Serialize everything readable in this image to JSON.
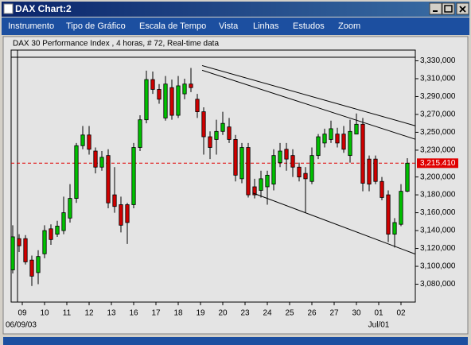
{
  "window": {
    "title": "DAX Chart:2",
    "menu": [
      "Instrumento",
      "Tipo de Gráfico",
      "Escala de Tempo",
      "Vista",
      "Linhas",
      "Estudos",
      "Zoom"
    ]
  },
  "chart_data": {
    "type": "candlestick",
    "title": "DAX 30 Performance Index , 4 horas, # 72, Real-time data",
    "x": [
      0,
      1,
      2,
      3,
      4,
      5,
      6,
      7,
      8,
      9,
      10,
      11,
      12,
      13,
      14,
      15,
      16,
      17,
      18,
      19,
      20,
      21,
      22,
      23,
      24,
      25,
      26,
      27,
      28,
      29,
      30,
      31,
      32,
      33,
      34,
      35,
      36,
      37,
      38,
      39,
      40,
      41,
      42,
      43,
      44,
      45,
      46,
      47,
      48,
      49,
      50,
      51,
      52,
      53,
      54,
      55,
      56,
      57,
      58,
      59,
      60,
      61,
      62
    ],
    "open": [
      3096,
      3131,
      3131,
      3107,
      3093,
      3114,
      3142,
      3136,
      3140,
      3154,
      3176,
      3235,
      3247,
      3229,
      3211,
      3224,
      3180,
      3169,
      3169,
      3169,
      3233,
      3264,
      3309,
      3298,
      3266,
      3300,
      3269,
      3293,
      3304,
      3287,
      3273,
      3245,
      3242,
      3251,
      3256,
      3242,
      3198,
      3233,
      3189,
      3185,
      3189,
      3192,
      3216,
      3231,
      3224,
      3211,
      3204,
      3195,
      3224,
      3238,
      3242,
      3248,
      3248,
      3224,
      3248,
      3259,
      3220,
      3220,
      3195,
      3180,
      3136,
      3147,
      3184
    ],
    "high": [
      3146,
      3136,
      3135,
      3112,
      3118,
      3146,
      3147,
      3151,
      3178,
      3192,
      3238,
      3257,
      3257,
      3233,
      3229,
      3231,
      3211,
      3178,
      3171,
      3238,
      3269,
      3319,
      3318,
      3304,
      3313,
      3309,
      3313,
      3310,
      3322,
      3293,
      3278,
      3251,
      3264,
      3273,
      3266,
      3247,
      3238,
      3238,
      3198,
      3207,
      3207,
      3231,
      3238,
      3238,
      3231,
      3216,
      3211,
      3233,
      3248,
      3254,
      3263,
      3255,
      3257,
      3264,
      3271,
      3266,
      3224,
      3224,
      3200,
      3185,
      3154,
      3192,
      3221
    ],
    "low": [
      3092,
      3116,
      3102,
      3078,
      3080,
      3109,
      3124,
      3133,
      3136,
      3149,
      3171,
      3231,
      3225,
      3204,
      3207,
      3165,
      3160,
      3138,
      3125,
      3165,
      3229,
      3260,
      3293,
      3282,
      3263,
      3264,
      3266,
      3287,
      3295,
      3266,
      3225,
      3220,
      3225,
      3247,
      3238,
      3195,
      3193,
      3177,
      3176,
      3177,
      3169,
      3185,
      3211,
      3207,
      3200,
      3195,
      3160,
      3192,
      3220,
      3233,
      3238,
      3233,
      3227,
      3216,
      3248,
      3184,
      3184,
      3192,
      3174,
      3127,
      3121,
      3145,
      3183
    ],
    "close": [
      3133,
      3123,
      3105,
      3089,
      3111,
      3140,
      3130,
      3145,
      3160,
      3176,
      3235,
      3247,
      3231,
      3211,
      3222,
      3171,
      3167,
      3146,
      3149,
      3233,
      3264,
      3309,
      3298,
      3287,
      3304,
      3269,
      3302,
      3304,
      3300,
      3273,
      3245,
      3233,
      3251,
      3260,
      3242,
      3202,
      3233,
      3180,
      3180,
      3198,
      3202,
      3224,
      3229,
      3220,
      3211,
      3200,
      3198,
      3224,
      3245,
      3248,
      3254,
      3238,
      3231,
      3251,
      3259,
      3193,
      3192,
      3195,
      3177,
      3136,
      3149,
      3184,
      3215.41
    ],
    "up_color": "#00c000",
    "down_color": "#d00000",
    "xlim": [
      -0.25,
      63.25
    ],
    "ylim": [
      3060,
      3342
    ],
    "yticks": [
      {
        "value": 3330,
        "label": "3,330,000"
      },
      {
        "value": 3310,
        "label": "3,310,000"
      },
      {
        "value": 3290,
        "label": "3,290,000"
      },
      {
        "value": 3270,
        "label": "3,270,000"
      },
      {
        "value": 3250,
        "label": "3,250,000"
      },
      {
        "value": 3230,
        "label": "3,230,000"
      },
      {
        "value": 3200,
        "label": "3,200,000"
      },
      {
        "value": 3180,
        "label": "3,180,000"
      },
      {
        "value": 3160,
        "label": "3,160,000"
      },
      {
        "value": 3140,
        "label": "3,140,000"
      },
      {
        "value": 3120,
        "label": "3,120,000"
      },
      {
        "value": 3100,
        "label": "3,100,000"
      },
      {
        "value": 3080,
        "label": "3,080,000"
      }
    ],
    "xticks": [
      {
        "value": 1.5,
        "label": "09"
      },
      {
        "value": 5,
        "label": "10"
      },
      {
        "value": 8.5,
        "label": "11"
      },
      {
        "value": 12,
        "label": "12"
      },
      {
        "value": 15.5,
        "label": "13"
      },
      {
        "value": 19,
        "label": "16"
      },
      {
        "value": 22.5,
        "label": "17"
      },
      {
        "value": 26,
        "label": "18"
      },
      {
        "value": 29.5,
        "label": "19"
      },
      {
        "value": 33,
        "label": "20"
      },
      {
        "value": 36.5,
        "label": "23"
      },
      {
        "value": 40,
        "label": "24"
      },
      {
        "value": 43.5,
        "label": "25"
      },
      {
        "value": 47,
        "label": "26"
      },
      {
        "value": 50.5,
        "label": "27"
      },
      {
        "value": 54,
        "label": "30"
      },
      {
        "value": 57.5,
        "label": "01"
      },
      {
        "value": 61,
        "label": "02"
      }
    ],
    "start_label": "06/09/03",
    "month_marks": [
      {
        "value": 57.5,
        "label": "Jul/01"
      }
    ],
    "last_price": {
      "value": 3215.41,
      "label": "3,215.410",
      "color": "#e00000"
    },
    "trend_lines": [
      {
        "x": [
          29.75,
          63.25
        ],
        "y": [
          3324.7,
          3257.3
        ]
      },
      {
        "x": [
          29.75,
          63.25
        ],
        "y": [
          3319.4,
          3242.2
        ]
      },
      {
        "x": [
          37.75,
          63.25
        ],
        "y": [
          3182,
          3113.7
        ]
      }
    ]
  }
}
